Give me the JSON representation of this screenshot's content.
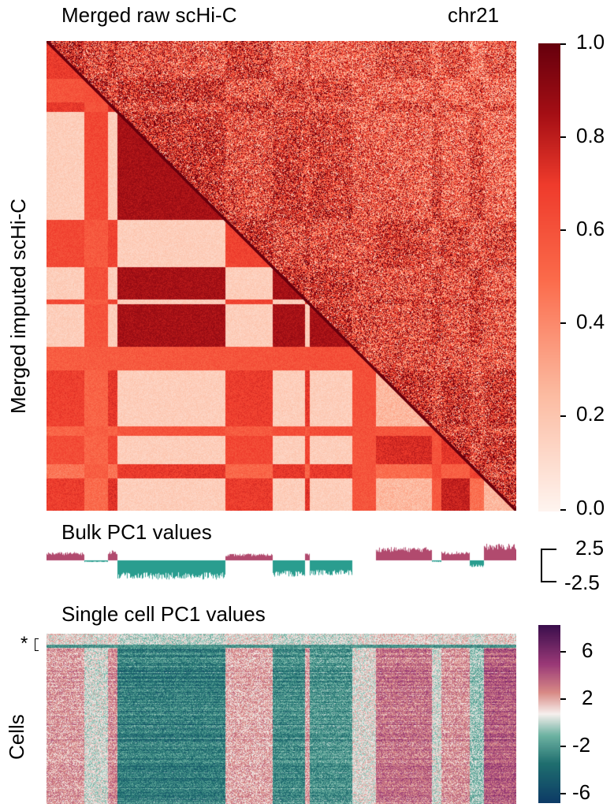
{
  "chart_data": [
    {
      "type": "heatmap",
      "panel": "Hi-C contact maps",
      "title": "Merged raw scHi-C",
      "chrom_label": "chr21",
      "ylabel": "Merged imputed scHi-C",
      "upper_triangle": "Merged raw scHi-C",
      "lower_triangle": "Merged imputed scHi-C",
      "colormap": "Reds",
      "colorbar": {
        "ticks": [
          "1.0",
          "0.8",
          "0.6",
          "0.4",
          "0.2",
          "0.0"
        ],
        "range": [
          0.0,
          1.0
        ]
      },
      "colors": {
        "low": "#fff5f0",
        "mid": "#ef3b2c",
        "high": "#67000d"
      }
    },
    {
      "type": "bar",
      "title": "Bulk PC1 values",
      "scale_ticks": [
        "2.5",
        "-2.5"
      ],
      "ylim": [
        -2.5,
        2.5
      ],
      "colors": {
        "positive": "#b14a6e",
        "negative": "#2a9d8f"
      },
      "profile_segments": [
        {
          "from": 0.0,
          "to": 0.08,
          "value": 1.0
        },
        {
          "from": 0.08,
          "to": 0.13,
          "value": -0.2
        },
        {
          "from": 0.13,
          "to": 0.15,
          "value": 1.2
        },
        {
          "from": 0.15,
          "to": 0.38,
          "value": -2.3
        },
        {
          "from": 0.38,
          "to": 0.48,
          "value": 0.8
        },
        {
          "from": 0.48,
          "to": 0.55,
          "value": -2.0
        },
        {
          "from": 0.55,
          "to": 0.56,
          "value": 0.9
        },
        {
          "from": 0.56,
          "to": 0.65,
          "value": -1.8
        },
        {
          "from": 0.65,
          "to": 0.7,
          "value": 0.0
        },
        {
          "from": 0.7,
          "to": 0.82,
          "value": 1.6
        },
        {
          "from": 0.82,
          "to": 0.84,
          "value": -0.2
        },
        {
          "from": 0.84,
          "to": 0.9,
          "value": 1.1
        },
        {
          "from": 0.9,
          "to": 0.93,
          "value": -0.8
        },
        {
          "from": 0.93,
          "to": 1.0,
          "value": 2.0
        }
      ]
    },
    {
      "type": "heatmap",
      "title": "Single cell PC1 values",
      "ylabel": "Cells",
      "marker": "*",
      "colormap": "curl (teal-white-purple)",
      "colorbar": {
        "ticks": [
          "6",
          "2",
          "-2",
          "-6"
        ],
        "range": [
          -7.5,
          7.5
        ]
      },
      "colors": {
        "low": "#0d3b66",
        "mid": "#f7f0ee",
        "high": "#3b0f4d"
      }
    }
  ]
}
